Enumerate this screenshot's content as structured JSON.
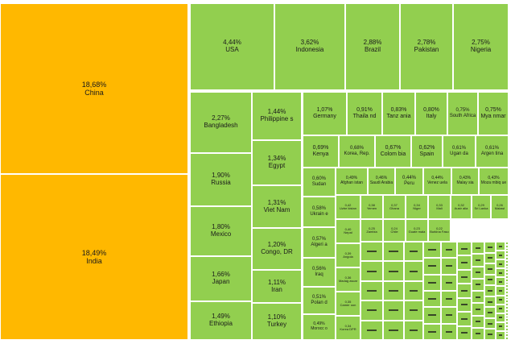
{
  "colors": {
    "highlight": "#FFB800",
    "default": "#92CF4F"
  },
  "chart_data": {
    "type": "treemap",
    "title": "",
    "unit": "% of world population",
    "labeled": [
      {
        "name": "China",
        "value": 18.68,
        "label": "18,68%",
        "highlight": true
      },
      {
        "name": "India",
        "value": 18.49,
        "label": "18,49%",
        "highlight": true
      },
      {
        "name": "USA",
        "value": 4.44,
        "label": "4,44%"
      },
      {
        "name": "Indonesia",
        "value": 3.62,
        "label": "3,62%"
      },
      {
        "name": "Brazil",
        "value": 2.88,
        "label": "2,88%"
      },
      {
        "name": "Pakistan",
        "value": 2.78,
        "label": "2,78%"
      },
      {
        "name": "Nigeria",
        "value": 2.75,
        "label": "2,75%"
      },
      {
        "name": "Bangladesh",
        "value": 2.27,
        "label": "2,27%"
      },
      {
        "name": "Russia",
        "value": 1.9,
        "label": "1,90%"
      },
      {
        "name": "Mexico",
        "value": 1.8,
        "label": "1,80%"
      },
      {
        "name": "Japan",
        "value": 1.66,
        "label": "1,66%"
      },
      {
        "name": "Ethiopia",
        "value": 1.49,
        "label": "1,49%"
      },
      {
        "name": "Philippines",
        "value": 1.44,
        "label": "1,44%"
      },
      {
        "name": "Egypt",
        "value": 1.34,
        "label": "1,34%"
      },
      {
        "name": "Viet Nam",
        "value": 1.31,
        "label": "1,31%"
      },
      {
        "name": "Congo, DR",
        "value": 1.2,
        "label": "1,20%"
      },
      {
        "name": "Iran",
        "value": 1.11,
        "label": "1,11%"
      },
      {
        "name": "Turkey",
        "value": 1.1,
        "label": "1,10%"
      },
      {
        "name": "Germany",
        "value": 1.07,
        "label": "1,07%"
      },
      {
        "name": "Thailand",
        "value": 0.91,
        "label": "0,91%"
      },
      {
        "name": "Tanzania",
        "value": 0.83,
        "label": "0,83%"
      },
      {
        "name": "Italy",
        "value": 0.8,
        "label": "0,80%"
      },
      {
        "name": "South Africa",
        "value": 0.75,
        "label": "0,75%"
      },
      {
        "name": "Myanmar",
        "value": 0.75,
        "label": "0,75%"
      },
      {
        "name": "Kenya",
        "value": 0.69,
        "label": "0,69%"
      },
      {
        "name": "Korea, Rep.",
        "value": 0.68,
        "label": "0,68%"
      },
      {
        "name": "Colombia",
        "value": 0.67,
        "label": "0,67%"
      },
      {
        "name": "Spain",
        "value": 0.62,
        "label": "0,62%"
      },
      {
        "name": "Uganda",
        "value": 0.61,
        "label": "0,61%"
      },
      {
        "name": "Argentina",
        "value": 0.61,
        "label": "0,61%"
      },
      {
        "name": "Sudan",
        "value": 0.6,
        "label": "0,60%"
      },
      {
        "name": "Afghanistan",
        "value": 0.49,
        "label": "0,49%"
      },
      {
        "name": "Saudi Arabia",
        "value": 0.46,
        "label": "0,46%"
      },
      {
        "name": "Peru",
        "value": 0.44,
        "label": "0,44%"
      },
      {
        "name": "Venezuela",
        "value": 0.44,
        "label": "0,44%"
      },
      {
        "name": "Malaysia",
        "value": 0.43,
        "label": "0,43%"
      },
      {
        "name": "Mozambique",
        "value": 0.43,
        "label": "0,43%"
      },
      {
        "name": "Ukraine",
        "value": 0.58,
        "label": "0,58%"
      },
      {
        "name": "Algeria",
        "value": 0.57,
        "label": "0,57%"
      },
      {
        "name": "Iraq",
        "value": 0.56,
        "label": "0,56%"
      },
      {
        "name": "Poland",
        "value": 0.51,
        "label": "0,51%"
      },
      {
        "name": "Morocco",
        "value": 0.49,
        "label": "0,49%"
      },
      {
        "name": "Uzbekistan",
        "value": 0.42,
        "label": "0,42"
      },
      {
        "name": "Nepal",
        "value": 0.4,
        "label": "0,40"
      },
      {
        "name": "Angola",
        "value": 0.39,
        "label": "0,39"
      },
      {
        "name": "Madagascar",
        "value": 0.36,
        "label": "0,36"
      },
      {
        "name": "Cameroon",
        "value": 0.35,
        "label": "0,35"
      },
      {
        "name": "Korea, DPR",
        "value": 0.34,
        "label": "0,34"
      },
      {
        "name": "Yemen",
        "value": 0.38,
        "label": "0,38"
      },
      {
        "name": "Ghana",
        "value": 0.37,
        "label": "0,37"
      },
      {
        "name": "Niger",
        "value": 0.34,
        "label": "0,34"
      },
      {
        "name": "Mali",
        "value": 0.33,
        "label": "0,33"
      },
      {
        "name": "Australia",
        "value": 0.32,
        "label": "0,32"
      },
      {
        "name": "Sri Lanka",
        "value": 0.29,
        "label": "0,29"
      },
      {
        "name": "Malawi",
        "value": 0.26,
        "label": "0,26"
      },
      {
        "name": "Zambia",
        "value": 0.25,
        "label": "0,25"
      },
      {
        "name": "Chile",
        "value": 0.24,
        "label": "0,24"
      },
      {
        "name": "Guatemala",
        "value": 0.23,
        "label": "0,23"
      },
      {
        "name": "Burkina Faso",
        "value": 0.22,
        "label": "0,22"
      }
    ],
    "unlabeled_small_countries": 190
  }
}
